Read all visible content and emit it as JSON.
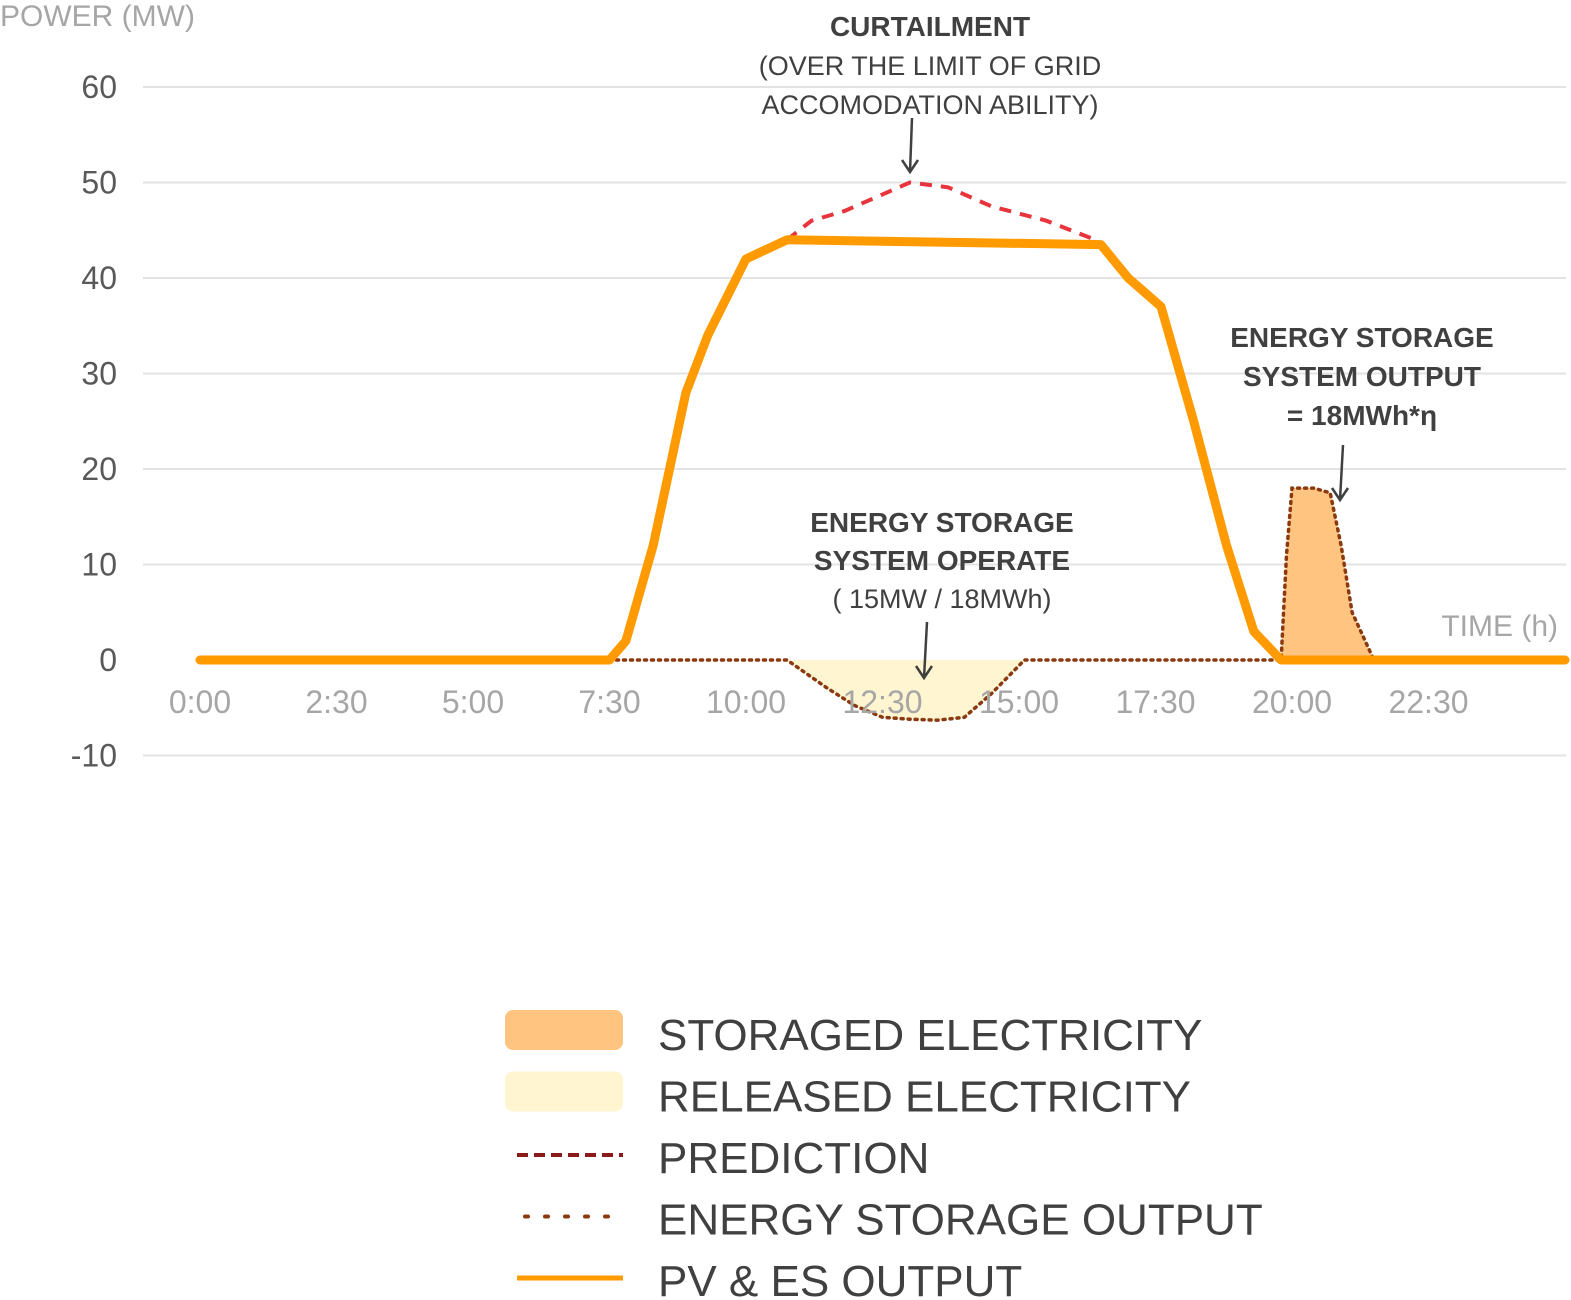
{
  "chart_data": {
    "type": "line",
    "ylabel": "POWER (MW)",
    "xlabel": "TIME (h)",
    "ylim": [
      -10,
      60
    ],
    "yticks": [
      60,
      50,
      40,
      30,
      20,
      10,
      0,
      -10
    ],
    "xticks": [
      "0:00",
      "2:30",
      "5:00",
      "7:30",
      "10:00",
      "12:30",
      "15:00",
      "17:30",
      "20:00",
      "22:30"
    ],
    "grid": true,
    "series": [
      {
        "name": "PV & ES OUTPUT",
        "color": "#ff9a00",
        "style": "solid",
        "x": [
          0.0,
          7.5,
          7.8,
          8.3,
          8.9,
          9.3,
          10.0,
          10.75,
          16.5,
          17.0,
          17.6,
          18.2,
          18.8,
          19.3,
          19.8,
          21.5,
          22.0,
          23.5,
          25.0
        ],
        "y": [
          0.0,
          0.0,
          2.0,
          12.0,
          28.0,
          34.0,
          42.0,
          44.0,
          43.5,
          40.0,
          37.0,
          25.0,
          12.0,
          3.0,
          0.0,
          0.0,
          0.0,
          0.0,
          0.0
        ]
      },
      {
        "name": "PREDICTION",
        "color": "#e8353d",
        "style": "dashed",
        "x": [
          10.75,
          11.2,
          11.8,
          12.4,
          13.0,
          13.7,
          14.5,
          15.5,
          16.4
        ],
        "y": [
          44.0,
          46.0,
          47.0,
          48.5,
          50.0,
          49.5,
          47.5,
          46.0,
          44.0
        ]
      },
      {
        "name": "ENERGY STORAGE OUTPUT",
        "color": "#8b3a0f",
        "style": "dotted",
        "x": [
          7.5,
          10.75,
          11.5,
          12.0,
          12.5,
          13.0,
          13.5,
          14.0,
          14.5,
          15.1,
          19.8,
          19.9,
          20.0,
          20.4,
          20.7,
          20.9,
          21.1,
          21.5,
          25.0
        ],
        "y": [
          0.0,
          0.0,
          -3.0,
          -4.8,
          -6.0,
          -6.2,
          -6.3,
          -6.0,
          -3.5,
          0.0,
          0.0,
          11.0,
          18.0,
          18.0,
          17.5,
          12.0,
          5.0,
          0.0,
          0.0
        ]
      }
    ],
    "areas": [
      {
        "name": "RELEASED ELECTRICITY",
        "color": "#fff5d0",
        "x": [
          10.75,
          11.5,
          12.0,
          12.5,
          13.0,
          13.5,
          14.0,
          14.5,
          15.1
        ],
        "y": [
          0.0,
          -3.0,
          -4.8,
          -6.0,
          -6.2,
          -6.3,
          -6.0,
          -3.5,
          0.0
        ]
      },
      {
        "name": "STORAGED ELECTRICITY",
        "color": "#ffc47f",
        "x": [
          19.8,
          19.9,
          20.0,
          20.4,
          20.7,
          20.9,
          21.1,
          21.5
        ],
        "y": [
          0.0,
          11.0,
          18.0,
          18.0,
          17.5,
          12.0,
          5.0,
          0.0
        ]
      }
    ],
    "annotations": [
      {
        "lines": [
          "CURTAILMENT",
          "(OVER THE LIMIT OF GRID",
          "ACCOMODATION ABILITY)"
        ],
        "bold_lines": 1,
        "x": 13.1,
        "y": 50.0
      },
      {
        "lines": [
          "ENERGY STORAGE",
          "SYSTEM OPERATE",
          "( 15MW / 18MWh)"
        ],
        "bold_lines": 2,
        "x": 13.1,
        "y": -2.5
      },
      {
        "lines": [
          "ENERGY STORAGE",
          "SYSTEM OUTPUT",
          "= 18MWh*η"
        ],
        "bold_lines": 3,
        "x": 20.5,
        "y": 16.5
      }
    ],
    "legend": {
      "position": "bottom-center",
      "items": [
        {
          "label": "STORAGED ELECTRICITY",
          "kind": "area",
          "color": "#ffc47f"
        },
        {
          "label": "RELEASED ELECTRICITY",
          "kind": "area",
          "color": "#fff5d0"
        },
        {
          "label": "PREDICTION",
          "kind": "dashed",
          "color": "#8b1a1a"
        },
        {
          "label": "ENERGY STORAGE OUTPUT",
          "kind": "dotted",
          "color": "#8b3a0f"
        },
        {
          "label": "PV & ES OUTPUT",
          "kind": "solid",
          "color": "#ff9a00"
        }
      ]
    }
  }
}
